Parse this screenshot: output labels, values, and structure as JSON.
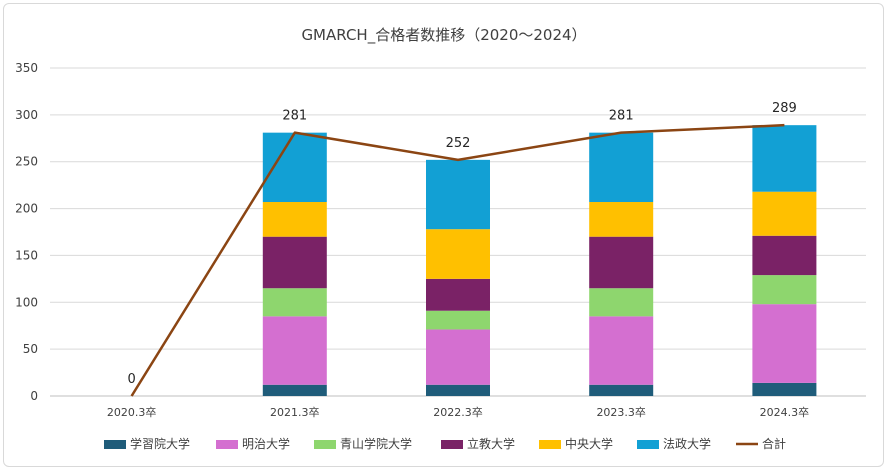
{
  "chart_data": {
    "type": "bar",
    "stacked": true,
    "title": "GMARCH_合格者数推移（2020～2024）",
    "categories": [
      "2020.3卒",
      "2021.3卒",
      "2022.3卒",
      "2023.3卒",
      "2024.3卒"
    ],
    "ylim": [
      0,
      350
    ],
    "yticks": [
      0,
      50,
      100,
      150,
      200,
      250,
      300,
      350
    ],
    "grid": true,
    "legend_position": "bottom",
    "series": [
      {
        "name": "学習院大学",
        "color": "#1f5c7a",
        "values": [
          0,
          12,
          12,
          12,
          14
        ]
      },
      {
        "name": "明治大学",
        "color": "#d46fd0",
        "values": [
          0,
          73,
          59,
          73,
          84
        ]
      },
      {
        "name": "青山学院大学",
        "color": "#8ed66e",
        "values": [
          0,
          30,
          20,
          30,
          31
        ]
      },
      {
        "name": "立教大学",
        "color": "#7a2266",
        "values": [
          0,
          55,
          34,
          55,
          42
        ]
      },
      {
        "name": "中央大学",
        "color": "#ffc000",
        "values": [
          0,
          37,
          53,
          37,
          47
        ]
      },
      {
        "name": "法政大学",
        "color": "#12a0d4",
        "values": [
          0,
          74,
          74,
          74,
          71
        ]
      }
    ],
    "line": {
      "name": "合計",
      "color": "#8b4513",
      "values": [
        0,
        281,
        252,
        281,
        289
      ],
      "labels": [
        "0",
        "281",
        "252",
        "281",
        "289"
      ]
    }
  }
}
